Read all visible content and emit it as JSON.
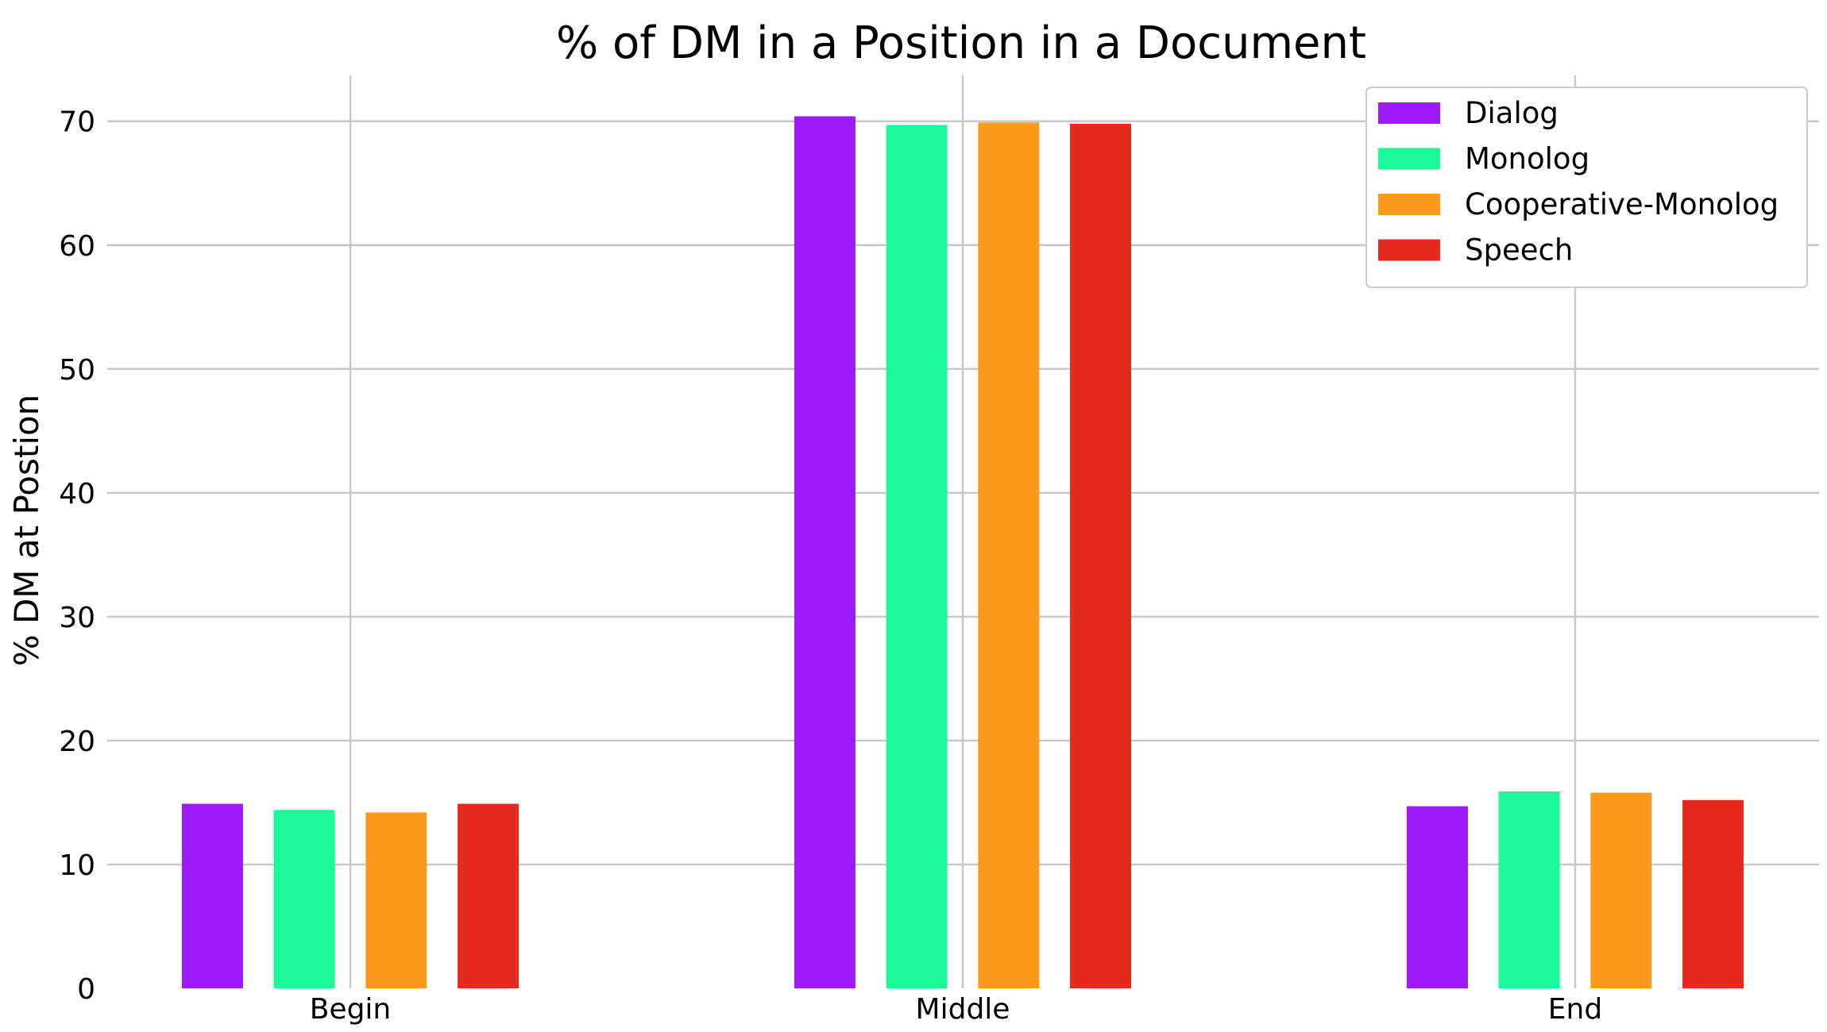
{
  "chart_data": {
    "type": "bar",
    "title": "% of DM in a Position in a Document",
    "xlabel": "",
    "ylabel": "% DM at Postion",
    "categories": [
      "Begin",
      "Middle",
      "End"
    ],
    "series": [
      {
        "name": "Dialog",
        "color": "#9b1bfa",
        "values": [
          14.9,
          70.4,
          14.7
        ]
      },
      {
        "name": "Monolog",
        "color": "#1bfa98",
        "values": [
          14.4,
          69.7,
          15.9
        ]
      },
      {
        "name": "Cooperative-Monolog",
        "color": "#fb9b1e",
        "values": [
          14.2,
          69.9,
          15.8
        ]
      },
      {
        "name": "Speech",
        "color": "#e52b1f",
        "values": [
          14.9,
          69.8,
          15.2
        ]
      }
    ],
    "ylim": [
      0,
      73.7
    ],
    "yticks": [
      0,
      10,
      20,
      30,
      40,
      50,
      60,
      70
    ],
    "grid": true,
    "legend_position": "top-right"
  }
}
